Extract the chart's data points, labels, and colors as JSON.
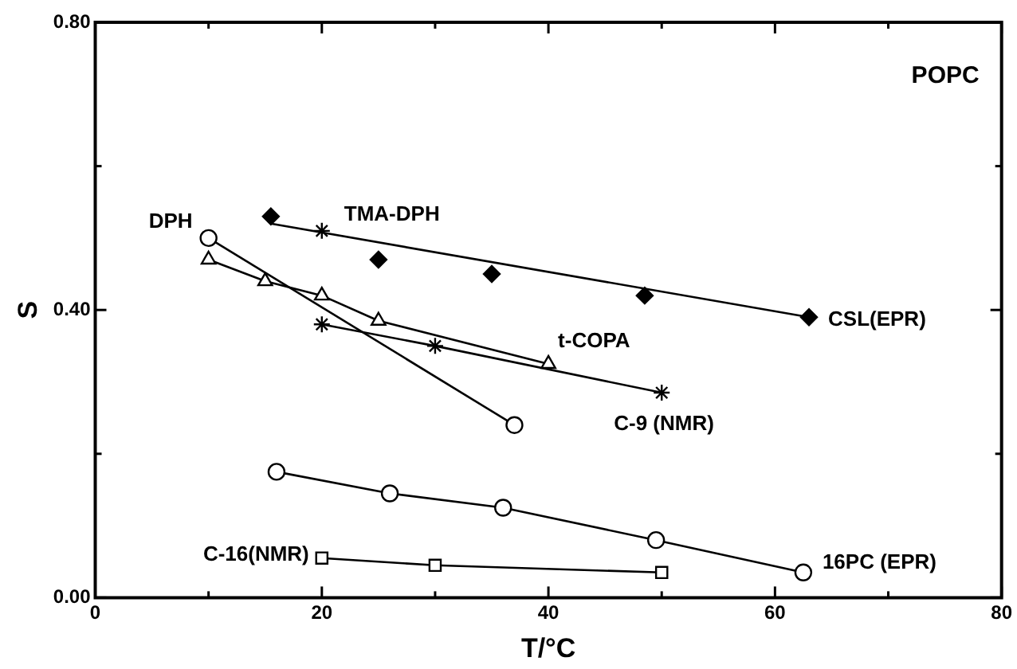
{
  "chart_data": {
    "type": "line",
    "xlabel": "T/°C",
    "ylabel": "S",
    "annotations": [
      "POPC"
    ],
    "xlim": [
      0,
      80
    ],
    "xticks": [
      0,
      {
        "value": 10,
        "label": null
      },
      20,
      {
        "value": 30,
        "label": null
      },
      40,
      {
        "value": 50,
        "label": null
      },
      60,
      {
        "value": 70,
        "label": null
      },
      80
    ],
    "ylim": [
      0,
      0.8
    ],
    "yticks": [
      {
        "value": 0,
        "label": "0.00"
      },
      {
        "value": 0.2,
        "label": null
      },
      {
        "value": 0.4,
        "label": "0.40"
      },
      {
        "value": 0.6,
        "label": null
      },
      {
        "value": 0.8,
        "label": "0.80"
      }
    ],
    "grid": false,
    "legend": false,
    "series": [
      {
        "name": "DPH",
        "marker": "circle",
        "color": "#000000",
        "x": [
          10,
          37
        ],
        "values": [
          0.5,
          0.24
        ]
      },
      {
        "name": "TMA-DPH",
        "type": "scatter",
        "marker": "cross",
        "color": "#000000",
        "x": [
          20
        ],
        "values": [
          0.51
        ]
      },
      {
        "name": "CSL(EPR)",
        "type": "scatter",
        "marker": "diamond",
        "color": "#000000",
        "x": [
          15.5,
          25,
          35,
          48.5,
          63
        ],
        "values": [
          0.53,
          0.47,
          0.45,
          0.42,
          0.39
        ]
      },
      {
        "type": "line",
        "marker": "none",
        "color": "#000000",
        "x": [
          15.5,
          63
        ],
        "values": [
          0.52,
          0.39
        ]
      },
      {
        "name": "t-COPA",
        "type": "line",
        "marker": "triangle",
        "color": "#000000",
        "x": [
          10,
          15,
          20,
          25,
          40
        ],
        "values": [
          0.47,
          0.44,
          0.42,
          0.385,
          0.325
        ]
      },
      {
        "name": "C-9 (NMR)",
        "marker": "cross",
        "color": "#000000",
        "x": [
          20,
          30,
          50
        ],
        "values": [
          0.38,
          0.35,
          0.285
        ]
      },
      {
        "name": "16PC (EPR)",
        "type": "line",
        "marker": "circle",
        "color": "#000000",
        "x": [
          16,
          26,
          36,
          49.5,
          62.5
        ],
        "values": [
          0.175,
          0.145,
          0.125,
          0.08,
          0.035
        ]
      },
      {
        "name": "C-16(NMR)",
        "type": "line",
        "marker": "square",
        "color": "#000000",
        "x": [
          20,
          30,
          50
        ],
        "values": [
          0.055,
          0.045,
          0.035
        ]
      }
    ]
  }
}
